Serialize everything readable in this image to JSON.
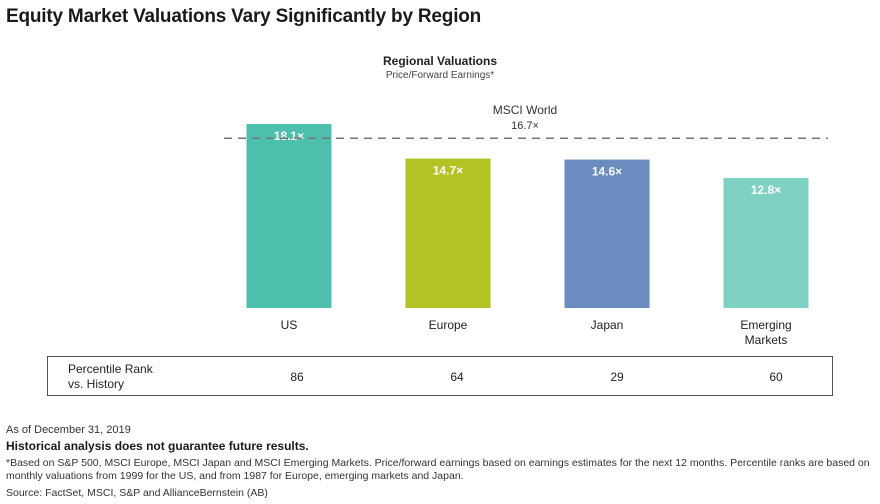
{
  "page": {
    "title": "Equity Market Valuations Vary Significantly by Region"
  },
  "chart_data": {
    "type": "bar",
    "title": "Regional Valuations",
    "subtitle": "Price/Forward Earnings*",
    "categories": [
      "US",
      "Europe",
      "Japan",
      "Emerging Markets"
    ],
    "values": [
      18.1,
      14.7,
      14.6,
      12.8
    ],
    "value_labels": [
      "18.1×",
      "14.7×",
      "14.6×",
      "12.8×"
    ],
    "colors": [
      "#4dbfad",
      "#b1c424",
      "#6a8cbf",
      "#7fd1c3"
    ],
    "ylim": [
      0,
      18.1
    ],
    "grid": false,
    "reference_line": {
      "label": "MSCI World",
      "value": 16.7,
      "value_label": "16.7×"
    }
  },
  "rank_table": {
    "label": "Percentile Rank\nvs. History",
    "values": [
      "86",
      "64",
      "29",
      "60"
    ]
  },
  "footer": {
    "date": "As of December 31, 2019",
    "disclaimer": "Historical analysis does not guarantee future results.",
    "note": "*Based on S&P 500, MSCI Europe, MSCI Japan and MSCI Emerging Markets. Price/forward earnings based on earnings estimates for the next 12 months. Percentile ranks are based on monthly valuations from 1999 for the US, and from 1987 for Europe, emerging markets and Japan.",
    "source": "Source: FactSet, MSCI, S&P and AllianceBernstein (AB)"
  }
}
